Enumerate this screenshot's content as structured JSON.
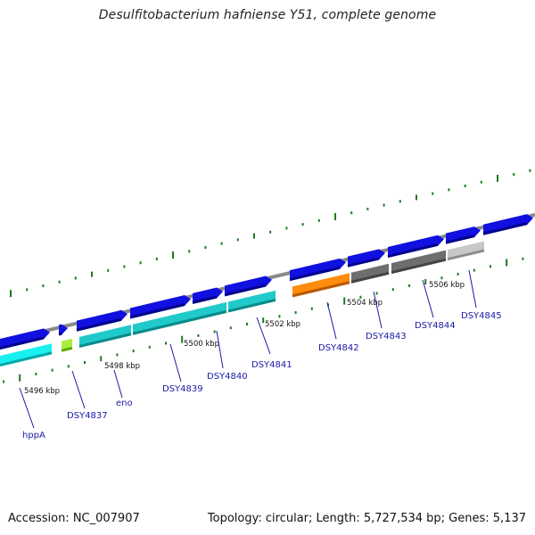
{
  "title": "Desulfitobacterium hafniense Y51, complete genome",
  "footer": {
    "accession": "Accession: NC_007907",
    "summary": "Topology: circular; Length: 5,727,534 bp; Genes: 5,137"
  },
  "colors": {
    "backbone": "#8a8a8a",
    "forward_gene": "#1010e0",
    "tick": "#1e7a1e",
    "label_line": "#1a1aa6"
  },
  "kbp_labels": [
    "5496 kbp",
    "5498 kbp",
    "5500 kbp",
    "5502 kbp",
    "5504 kbp",
    "5506 kbp"
  ],
  "gene_labels": [
    "hppA",
    "DSY4837",
    "eno",
    "DSY4839",
    "DSY4840",
    "DSY4841",
    "DSY4842",
    "DSY4843",
    "DSY4844",
    "DSY4845"
  ]
}
